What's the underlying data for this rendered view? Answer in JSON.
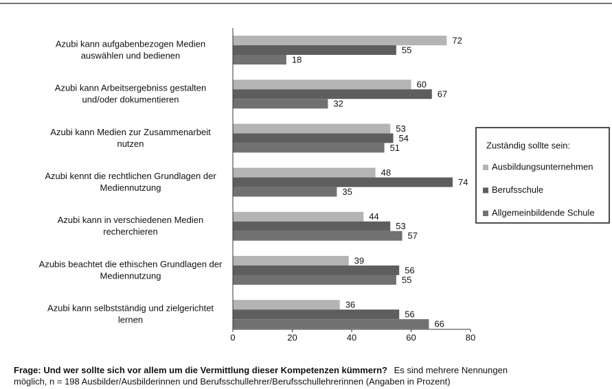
{
  "chart_data": {
    "type": "hbar",
    "categories": [
      [
        "Azubi kann aufgabenbezogen Medien",
        "auswählen und bedienen"
      ],
      [
        "Azubi kann Arbeitsergebniss gestalten",
        "und/oder dokumentieren"
      ],
      [
        "Azubi kann Medien zur Zusammenarbeit",
        "nutzen"
      ],
      [
        "Azubi kennt die rechtlichen Grundlagen der",
        "Mediennutzung"
      ],
      [
        "Azubi kann in verschiedenen Medien",
        "recherchieren"
      ],
      [
        "Azubis beachtet die ethischen Grundlagen der",
        "Mediennutzung"
      ],
      [
        "Azubi kann selbstständig und zielgerichtet",
        "lernen"
      ]
    ],
    "series": [
      {
        "name": "Ausbildungsunternehmen",
        "color": "#b4b4b4",
        "values": [
          72,
          60,
          53,
          48,
          44,
          39,
          36
        ]
      },
      {
        "name": "Berufsschule",
        "color": "#5e5e5e",
        "values": [
          55,
          67,
          54,
          74,
          53,
          56,
          56
        ]
      },
      {
        "name": "Allgemeinbildende Schule",
        "color": "#717171",
        "values": [
          18,
          32,
          51,
          35,
          57,
          55,
          66
        ]
      }
    ],
    "xlim": [
      0,
      80
    ],
    "xticks": [
      0,
      20,
      40,
      60,
      80
    ],
    "legend_title": "Zuständig sollte sein:",
    "legend_position": "right",
    "caption_bold": "Frage: Und wer sollte sich vor allem um die Vermittlung dieser Kompetenzen kümmern?",
    "caption_text": [
      "Es sind mehrere Nennungen",
      "möglich, n  = 198 Ausbilder/Ausbilderinnen  und Berufsschullehrer/Berufsschullehrerinnen  (Angaben in Prozent)"
    ]
  }
}
